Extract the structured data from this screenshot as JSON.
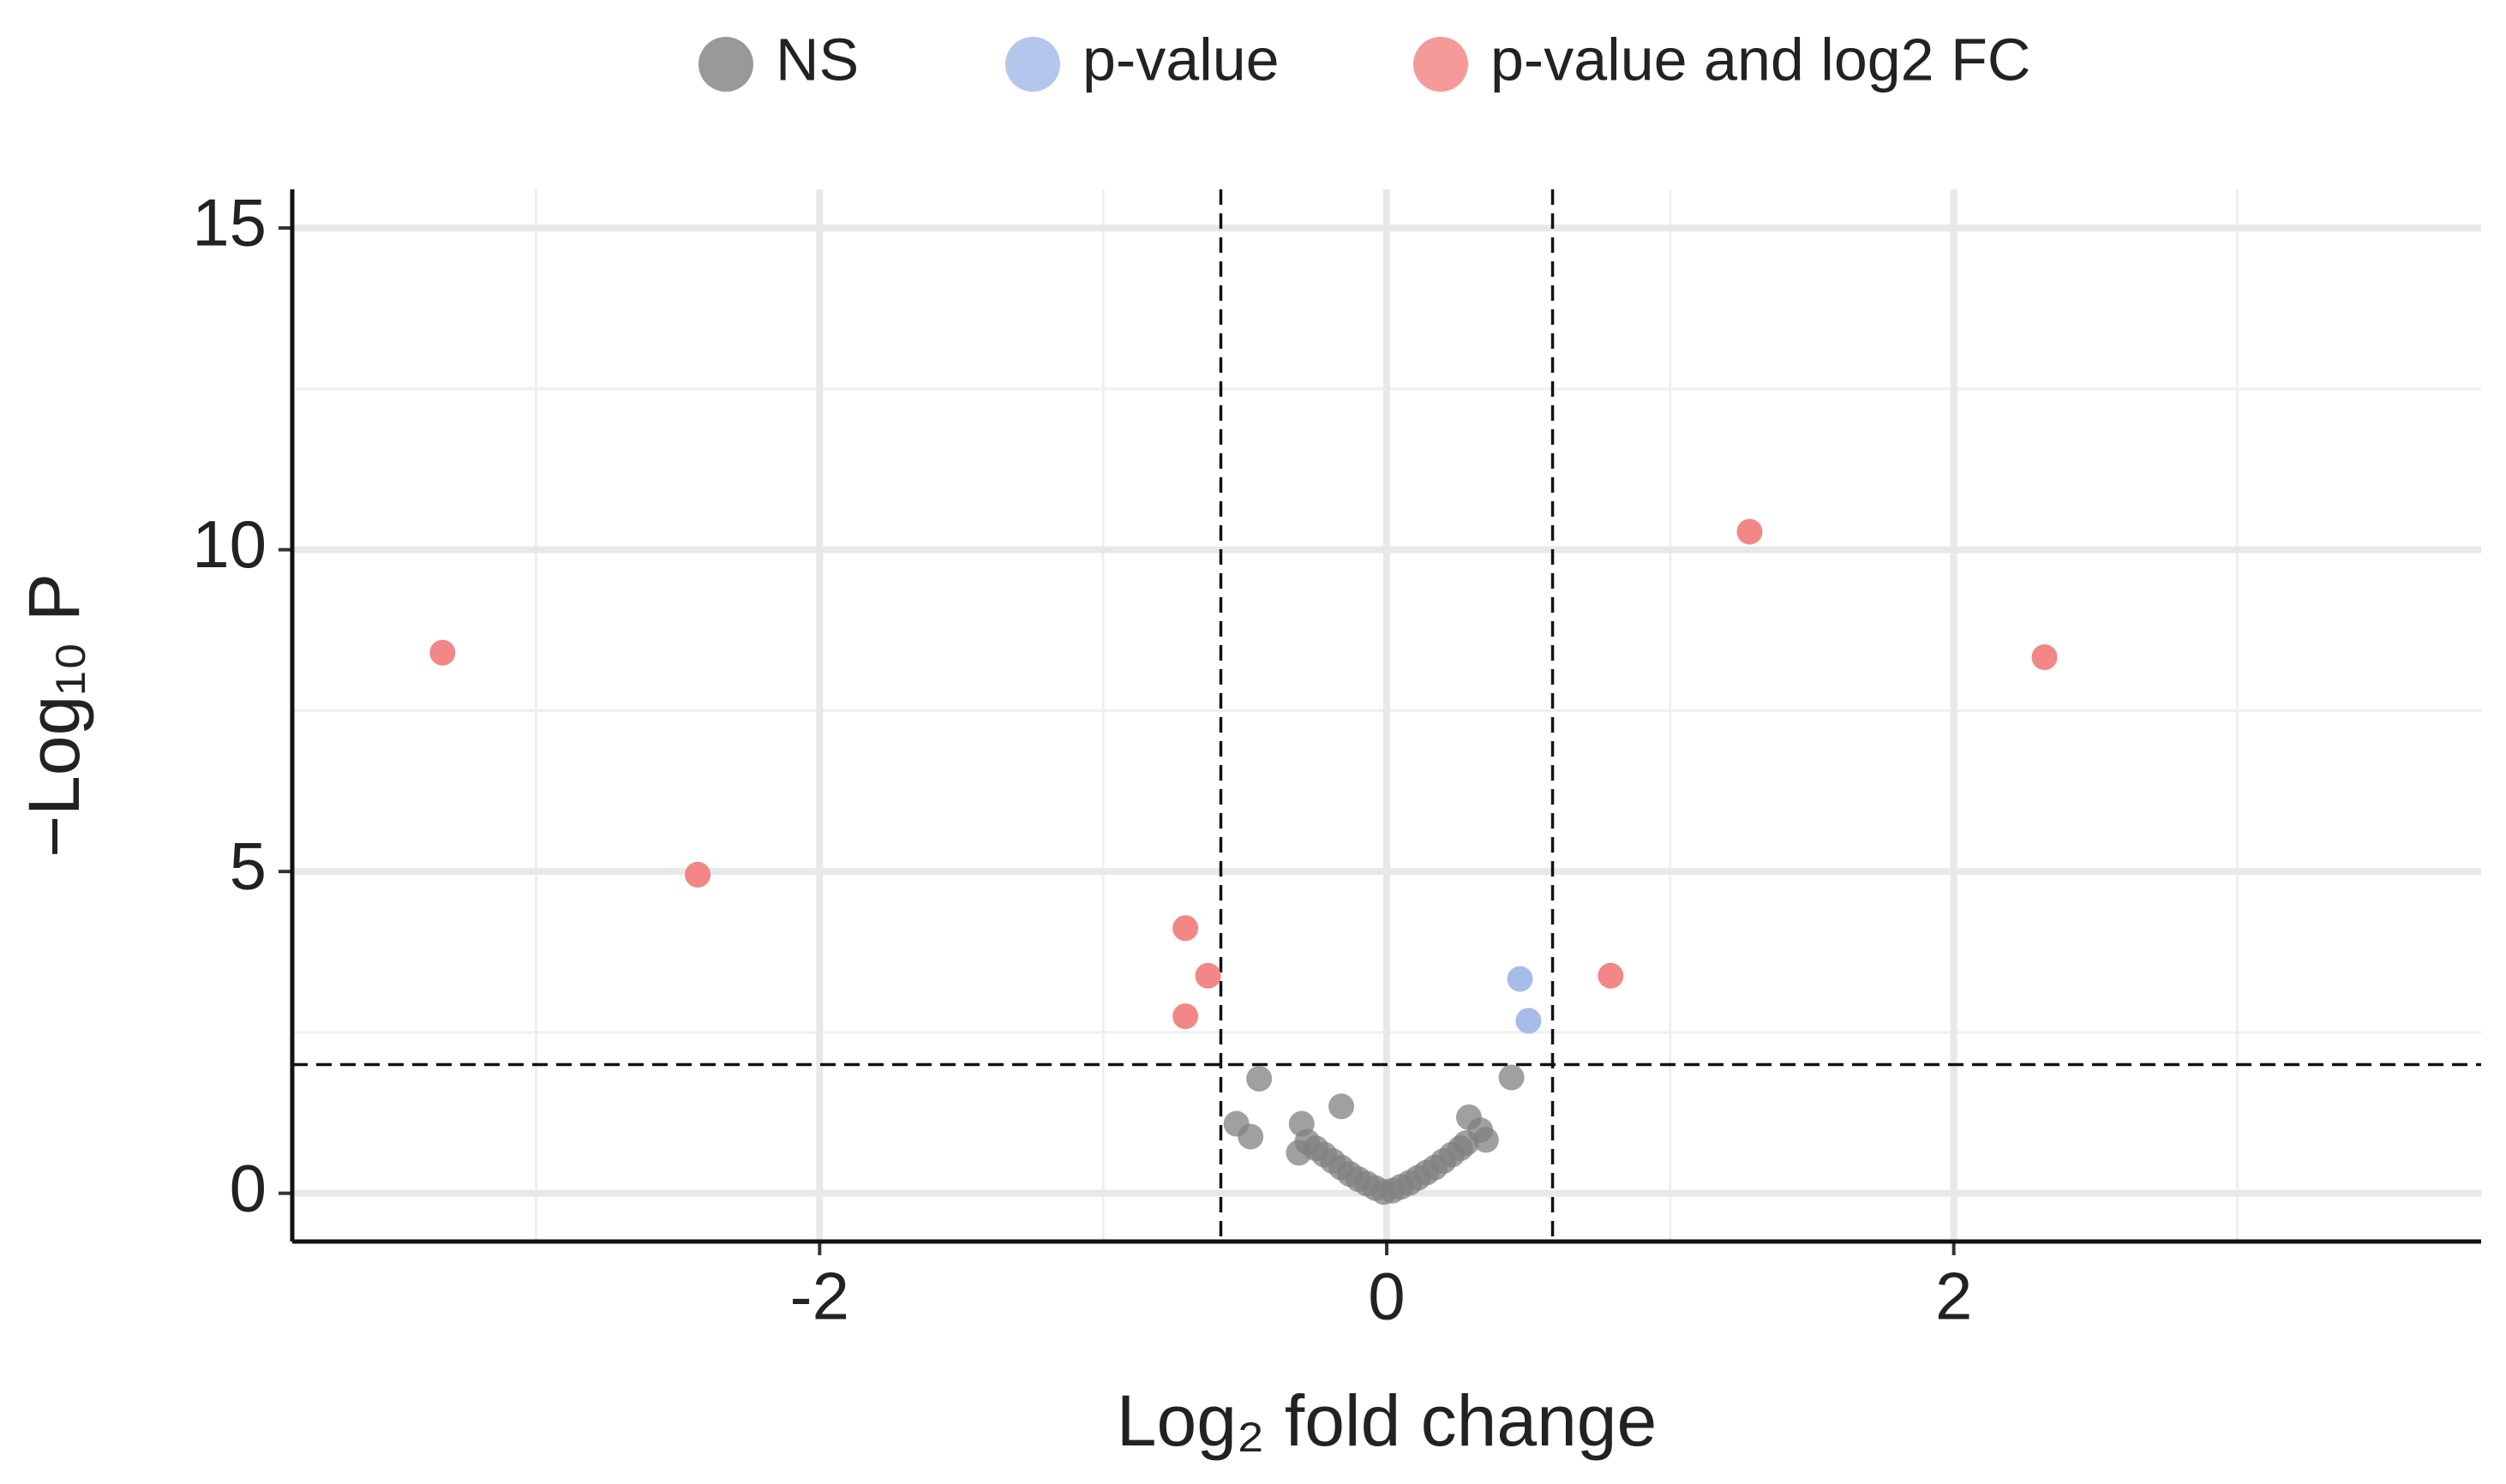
{
  "chart_data": {
    "type": "scatter",
    "x_label": "Log₂ fold change",
    "y_label": "−Log₁₀ P",
    "xlim": [
      -3.86,
      3.86
    ],
    "ylim": [
      -0.75,
      15.6
    ],
    "xticks": [
      -2,
      0,
      2
    ],
    "yticks": [
      0,
      5,
      10,
      15
    ],
    "xminor": [
      -3,
      -1,
      1,
      3
    ],
    "yminor": [
      2.5,
      7.5,
      12.5
    ],
    "grid": true,
    "legend": "top",
    "vlines": [
      -0.585,
      0.585
    ],
    "hline": 2,
    "series": [
      {
        "name": "NS",
        "color": "#808080",
        "x": [
          -0.45,
          -0.53,
          -0.48,
          -0.3,
          -0.31,
          -0.16,
          0.44,
          0.29,
          0.33,
          0.35,
          -0.28,
          -0.25,
          -0.22,
          -0.19,
          -0.16,
          -0.13,
          -0.1,
          -0.07,
          -0.04,
          -0.01,
          0.02,
          0.05,
          0.08,
          0.11,
          0.14,
          0.17,
          0.2,
          0.23,
          0.26,
          0.28
        ],
        "values": [
          1.78,
          1.08,
          0.88,
          1.08,
          0.63,
          1.35,
          1.8,
          1.18,
          0.98,
          0.83,
          0.8,
          0.7,
          0.6,
          0.5,
          0.4,
          0.3,
          0.22,
          0.15,
          0.08,
          0.02,
          0.04,
          0.1,
          0.16,
          0.24,
          0.32,
          0.4,
          0.5,
          0.6,
          0.7,
          0.78
        ]
      },
      {
        "name": "p-value",
        "color": "#a3b8e8",
        "x": [
          0.47,
          0.5
        ],
        "values": [
          3.33,
          2.68
        ]
      },
      {
        "name": "p-value and log2 FC",
        "color": "#f27f7f",
        "x": [
          -3.33,
          -2.43,
          -0.71,
          -0.63,
          -0.71,
          0.79,
          1.28,
          2.32
        ],
        "values": [
          8.4,
          4.95,
          4.12,
          3.38,
          2.75,
          3.38,
          10.28,
          8.33
        ]
      }
    ]
  }
}
